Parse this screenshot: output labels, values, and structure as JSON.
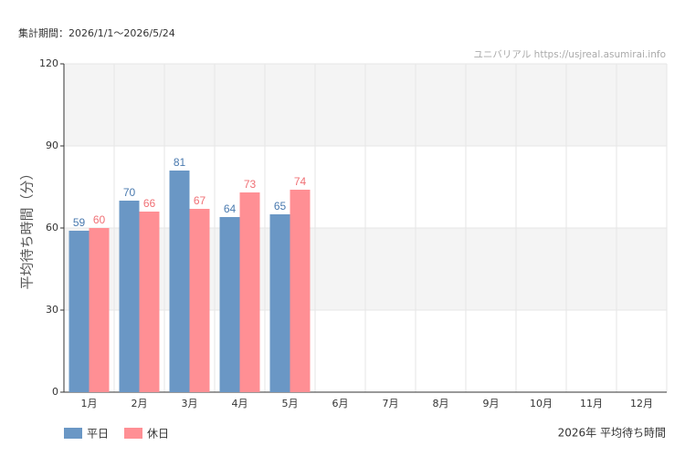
{
  "chart_data": {
    "type": "bar",
    "period": "集計期間：2026/1/1～2026/5/24",
    "source": "ユニバリアル  https://usjreal.asumirai.info",
    "y_label": "平均待ち時間（分）",
    "footer": "2026年 平均待ち時間",
    "categories": [
      "1月",
      "2月",
      "3月",
      "4月",
      "5月",
      "6月",
      "7月",
      "8月",
      "9月",
      "10月",
      "11月",
      "12月"
    ],
    "series": [
      {
        "name": "平日",
        "color": "#6a97c5",
        "label_color": "#4a7aaf",
        "values": [
          59,
          70,
          81,
          64,
          65,
          null,
          null,
          null,
          null,
          null,
          null,
          null
        ]
      },
      {
        "name": "休日",
        "color": "#ff8f94",
        "label_color": "#f07075",
        "values": [
          60,
          66,
          67,
          73,
          74,
          null,
          null,
          null,
          null,
          null,
          null,
          null
        ]
      }
    ],
    "ylim": [
      0,
      120
    ],
    "yticks": [
      0,
      30,
      60,
      90,
      120
    ],
    "grid": true
  }
}
